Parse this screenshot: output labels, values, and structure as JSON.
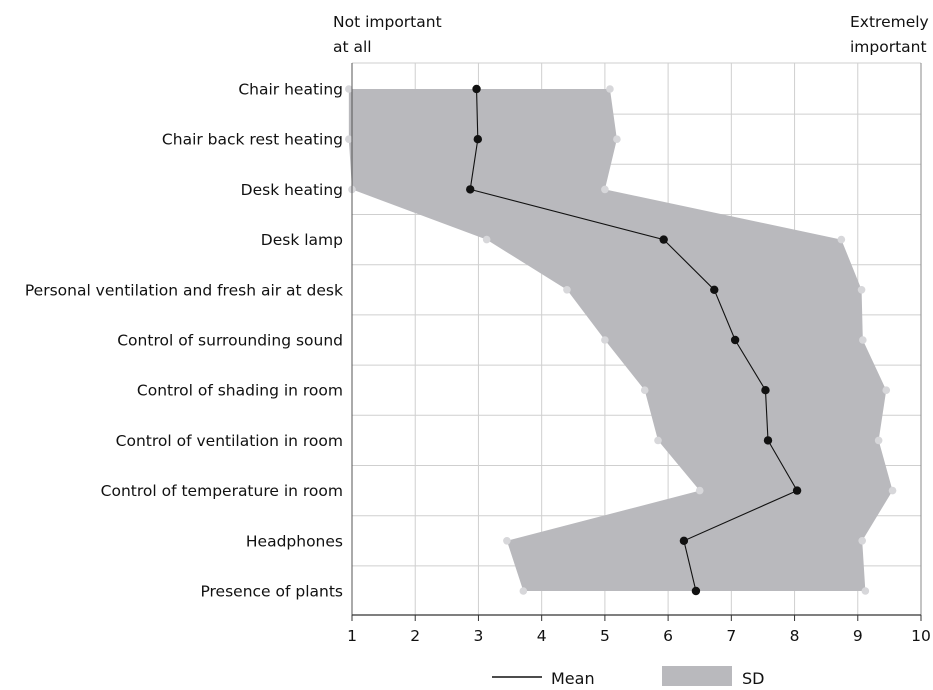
{
  "chart_data": {
    "type": "line",
    "title": "",
    "xlabel": "",
    "ylabel": "",
    "xlim": [
      1,
      10
    ],
    "xticks": [
      "1",
      "2",
      "3",
      "4",
      "5",
      "6",
      "7",
      "8",
      "9",
      "10"
    ],
    "grid": true,
    "scale_labels": {
      "left_line1": "Not important",
      "left_line2": "at all",
      "right_line1": "Extremely",
      "right_line2": "important"
    },
    "categories": [
      "Chair heating",
      "Chair back rest heating",
      "Desk heating",
      "Desk lamp",
      "Personal ventilation and fresh air at desk",
      "Control of surrounding sound",
      "Control of shading in room",
      "Control of ventilation in room",
      "Control of temperature in room",
      "Headphones",
      "Presence of plants"
    ],
    "series": [
      {
        "name": "Mean",
        "type": "line",
        "color": "#111111",
        "values": [
          2.97,
          2.99,
          2.87,
          5.93,
          6.73,
          7.06,
          7.54,
          7.58,
          8.04,
          6.25,
          6.44
        ]
      },
      {
        "name": "SD",
        "type": "band",
        "color": "#b9b9bd",
        "lower": [
          0.95,
          0.95,
          1.0,
          3.13,
          4.4,
          5.0,
          5.63,
          5.84,
          6.5,
          3.45,
          3.71
        ],
        "upper": [
          5.08,
          5.19,
          5.0,
          8.74,
          9.06,
          9.08,
          9.45,
          9.33,
          9.55,
          9.07,
          9.12
        ]
      }
    ],
    "legend": {
      "position": "bottom",
      "items": [
        {
          "label": "Mean",
          "color": "#111111",
          "kind": "line"
        },
        {
          "label": "SD",
          "color": "#b9b9bd",
          "kind": "box"
        }
      ]
    }
  }
}
